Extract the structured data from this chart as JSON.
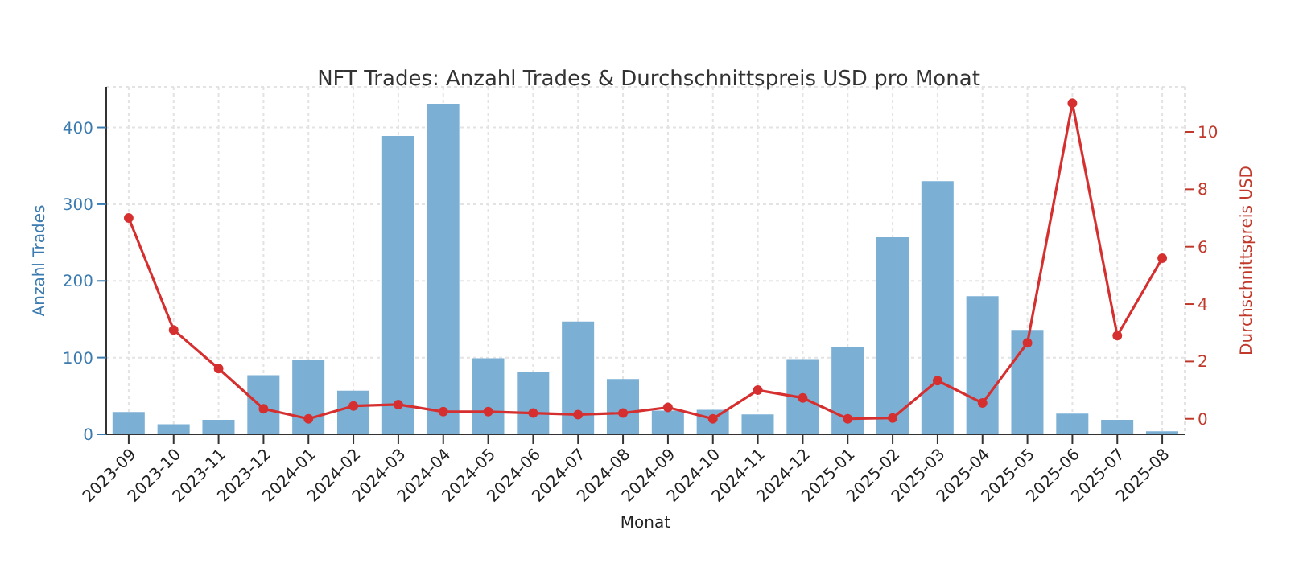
{
  "chart_data": {
    "type": "bar",
    "title": "NFT Trades: Anzahl Trades & Durchschnittspreis USD pro Monat",
    "xlabel": "Monat",
    "ylabel": "Anzahl Trades",
    "y2label": "Durchschnittspreis USD",
    "categories": [
      "2023-09",
      "2023-10",
      "2023-11",
      "2023-12",
      "2024-01",
      "2024-02",
      "2024-03",
      "2024-04",
      "2024-05",
      "2024-06",
      "2024-07",
      "2024-08",
      "2024-09",
      "2024-10",
      "2024-11",
      "2024-12",
      "2025-01",
      "2025-02",
      "2025-03",
      "2025-04",
      "2025-05",
      "2025-06",
      "2025-07",
      "2025-08"
    ],
    "series": [
      {
        "color": "#7bafd4",
        "values": [
          29,
          13,
          19,
          77,
          97,
          57,
          389,
          431,
          99,
          81,
          147,
          72,
          31,
          32,
          26,
          98,
          114,
          257,
          330,
          180,
          136,
          27,
          19,
          4
        ]
      },
      {
        "type": "line",
        "axis": "y2",
        "color": "#d62f2f",
        "values": [
          7.0,
          3.1,
          1.75,
          0.35,
          0.0,
          0.45,
          0.5,
          0.25,
          0.25,
          0.2,
          0.15,
          0.2,
          0.4,
          0.0,
          1.0,
          0.73,
          0.0,
          0.03,
          1.33,
          0.55,
          2.65,
          11.0,
          2.9,
          5.6
        ]
      }
    ],
    "ylim": [
      0,
      453
    ],
    "yticks": [
      0,
      100,
      200,
      300,
      400
    ],
    "y2lim": [
      -0.54,
      11.57
    ],
    "y2ticks": [
      0,
      2,
      4,
      6,
      8,
      10
    ],
    "grid": true,
    "legend": false,
    "marker": "circle",
    "line_style": "solid"
  }
}
